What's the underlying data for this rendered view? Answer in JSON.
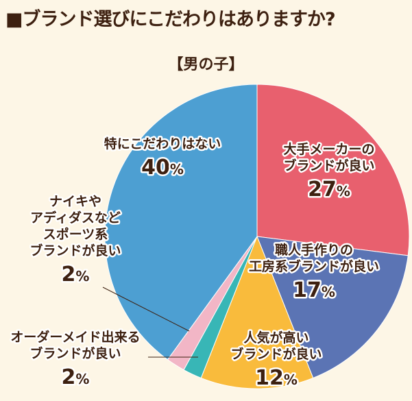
{
  "header": {
    "title": "■ブランド選びにこだわりはありますか?",
    "subtitle": "【男の子】"
  },
  "chart_data": {
    "type": "pie",
    "title": "■ブランド選びにこだわりはありますか?",
    "subtitle": "【男の子】",
    "unit": "%",
    "slices": [
      {
        "label_lines": [
          "大手メーカーの",
          "ブランドが良い"
        ],
        "value": 27,
        "color": "#e8606e"
      },
      {
        "label_lines": [
          "職人手作りの",
          "工房系ブランドが良い"
        ],
        "value": 17,
        "color": "#5b74b4"
      },
      {
        "label_lines": [
          "人気が高い",
          "ブランドが良い"
        ],
        "value": 12,
        "color": "#f9bb3c"
      },
      {
        "label_lines": [
          "オーダーメイド出来る",
          "ブランドが良い"
        ],
        "value": 2,
        "color": "#38b6b6"
      },
      {
        "label_lines": [
          "ナイキや",
          "アディダスなど",
          "スポーツ系",
          "ブランドが良い"
        ],
        "value": 2,
        "color": "#f2b6c6"
      },
      {
        "label_lines": [
          "特にこだわりはない"
        ],
        "value": 40,
        "color": "#4d9fd2"
      }
    ]
  }
}
